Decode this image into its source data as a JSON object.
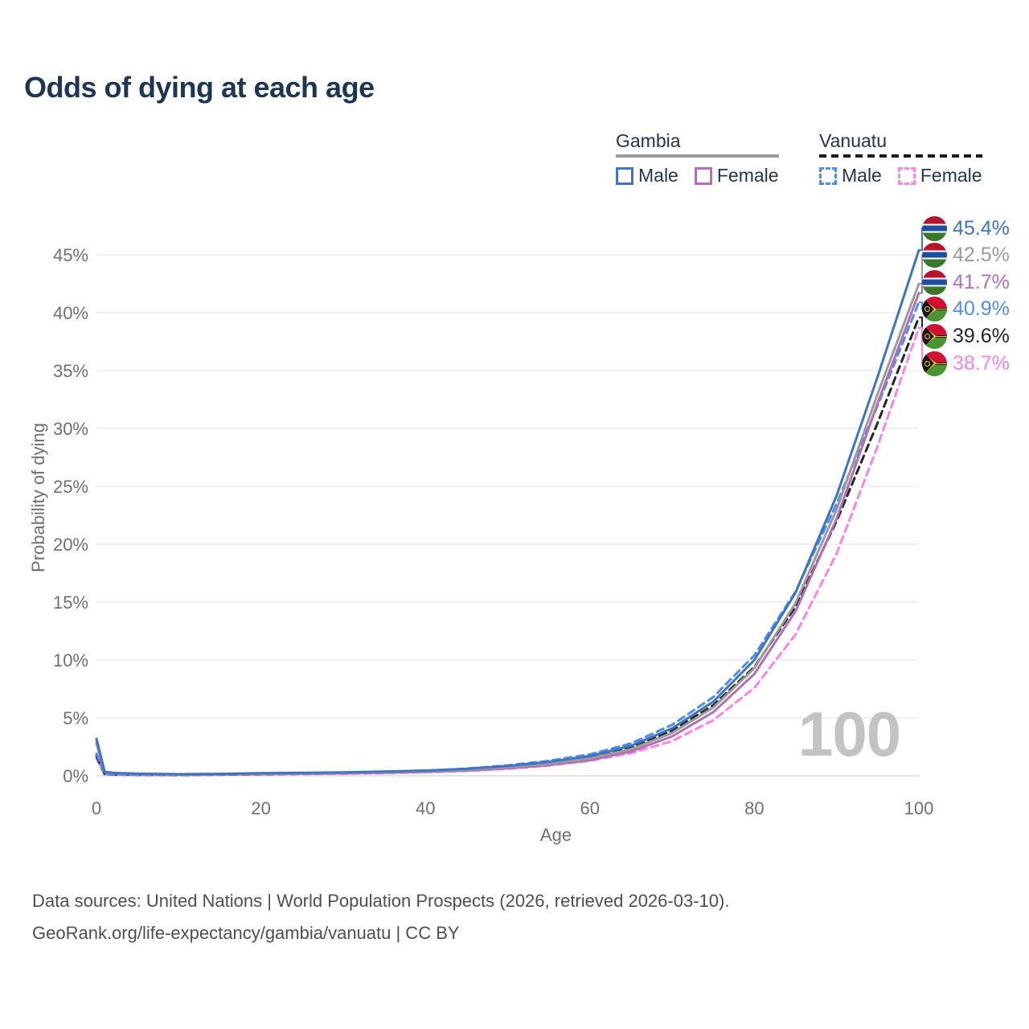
{
  "title": "Odds of dying at each age",
  "watermark_age": "100",
  "legend": {
    "groups": [
      {
        "name": "Gambia",
        "line_style": "solid",
        "header_color": "#9b9b9b",
        "items": [
          {
            "label": "Male",
            "color": "#3e74c2"
          },
          {
            "label": "Female",
            "color": "#b06fb6"
          }
        ]
      },
      {
        "name": "Vanuatu",
        "line_style": "dashed",
        "header_color": "#1a1a1a",
        "items": [
          {
            "label": "Male",
            "color": "#4f8cf0"
          },
          {
            "label": "Female",
            "color": "#fb82e6"
          }
        ]
      }
    ]
  },
  "footer": {
    "line1": "Data sources: United Nations | World Population Prospects (2026, retrieved 2026-03-10).",
    "line2": "GeoRank.org/life-expectancy/gambia/vanuatu | CC BY"
  },
  "chart_data": {
    "type": "line",
    "title": "Odds of dying at each age",
    "xlabel": "Age",
    "ylabel": "Probability of dying",
    "xlim": [
      0,
      100
    ],
    "ylim_percent": [
      0,
      47.5
    ],
    "x_ticks": [
      0,
      20,
      40,
      60,
      80,
      100
    ],
    "y_ticks_percent": [
      0,
      5,
      10,
      15,
      20,
      25,
      30,
      35,
      40,
      45
    ],
    "grid": "horizontal",
    "legend_position": "top-right",
    "ages": [
      0,
      1,
      2,
      5,
      10,
      15,
      20,
      25,
      30,
      35,
      40,
      45,
      50,
      55,
      60,
      65,
      70,
      75,
      80,
      85,
      90,
      95,
      100
    ],
    "series": [
      {
        "name": "Gambia Male",
        "country": "Gambia",
        "sex": "Male",
        "color": "#3e74c2",
        "dash": false,
        "end_label": "45.4%",
        "values_percent": [
          3.2,
          0.35,
          0.25,
          0.18,
          0.14,
          0.17,
          0.22,
          0.26,
          0.3,
          0.36,
          0.45,
          0.6,
          0.85,
          1.2,
          1.7,
          2.6,
          4.1,
          6.4,
          10.0,
          15.8,
          24.2,
          34.5,
          45.4
        ]
      },
      {
        "name": "Gambia Both sexes",
        "country": "Gambia",
        "sex": "Both",
        "color": "#9b9b9b",
        "dash": false,
        "end_label": "42.5%",
        "values_percent": [
          3.0,
          0.33,
          0.23,
          0.16,
          0.12,
          0.14,
          0.18,
          0.22,
          0.26,
          0.31,
          0.39,
          0.52,
          0.74,
          1.05,
          1.5,
          2.3,
          3.7,
          5.9,
          9.3,
          14.9,
          23.0,
          33.0,
          42.5
        ]
      },
      {
        "name": "Gambia Female",
        "country": "Gambia",
        "sex": "Female",
        "color": "#b06fb6",
        "dash": false,
        "end_label": "41.7%",
        "values_percent": [
          2.8,
          0.31,
          0.22,
          0.15,
          0.11,
          0.12,
          0.15,
          0.18,
          0.21,
          0.26,
          0.33,
          0.45,
          0.64,
          0.92,
          1.35,
          2.1,
          3.4,
          5.5,
          8.8,
          14.2,
          22.2,
          32.2,
          41.7
        ]
      },
      {
        "name": "Vanuatu Male",
        "country": "Vanuatu",
        "sex": "Male",
        "color": "#4f8cf0",
        "dash": true,
        "end_label": "40.9%",
        "values_percent": [
          1.9,
          0.16,
          0.12,
          0.09,
          0.08,
          0.12,
          0.17,
          0.22,
          0.27,
          0.34,
          0.44,
          0.62,
          0.9,
          1.3,
          1.85,
          2.8,
          4.4,
          6.8,
          10.4,
          15.9,
          23.5,
          32.0,
          40.9
        ]
      },
      {
        "name": "Vanuatu Both sexes",
        "country": "Vanuatu",
        "sex": "Both",
        "color": "#262626",
        "dash": true,
        "end_label": "39.6%",
        "values_percent": [
          1.7,
          0.14,
          0.11,
          0.08,
          0.07,
          0.1,
          0.14,
          0.18,
          0.23,
          0.29,
          0.38,
          0.53,
          0.78,
          1.12,
          1.6,
          2.45,
          3.9,
          6.1,
          9.4,
          14.6,
          22.0,
          30.5,
          39.6
        ]
      },
      {
        "name": "Vanuatu Female",
        "country": "Vanuatu",
        "sex": "Female",
        "color": "#fb82e6",
        "dash": true,
        "end_label": "38.7%",
        "values_percent": [
          1.5,
          0.12,
          0.09,
          0.07,
          0.06,
          0.08,
          0.11,
          0.14,
          0.17,
          0.22,
          0.3,
          0.42,
          0.6,
          0.88,
          1.3,
          1.95,
          3.0,
          4.8,
          7.6,
          12.2,
          19.2,
          28.5,
          38.7
        ]
      }
    ],
    "end_labels": [
      {
        "value": "45.4%",
        "flag": "gambia",
        "color": "#3e74c2"
      },
      {
        "value": "42.5%",
        "flag": "gambia",
        "color": "#9b9b9b"
      },
      {
        "value": "41.7%",
        "flag": "gambia",
        "color": "#b06fb6"
      },
      {
        "value": "40.9%",
        "flag": "vanuatu",
        "color": "#4f8cf0"
      },
      {
        "value": "39.6%",
        "flag": "vanuatu",
        "color": "#262626"
      },
      {
        "value": "38.7%",
        "flag": "vanuatu",
        "color": "#fb82e6"
      }
    ]
  }
}
